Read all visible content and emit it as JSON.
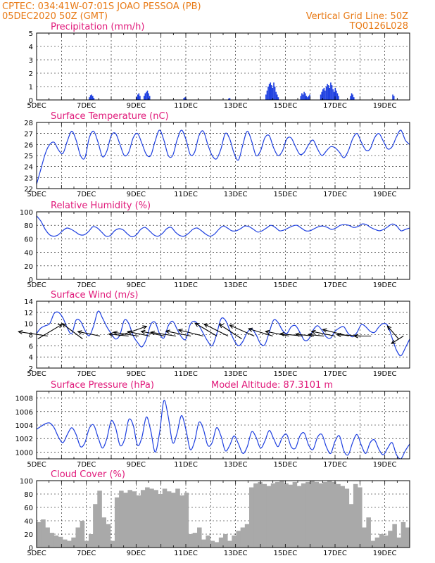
{
  "header": {
    "line1_left": "CPTEC:   034:41W-07:01S   JOAO PESSOA (PB)",
    "line2_left": "05DEC2020  50Z  (GMT)",
    "line1_right": "Vertical Grid Line: 50Z",
    "line2_right": "TQ0126L028",
    "extra_right": "Model Altitude: 87.3101 m"
  },
  "colors": {
    "header": "#e87a16",
    "title": "#e0197a",
    "line": "#1d3fe0",
    "bar": "#1d3fe0",
    "cloud": "#a9a9a9",
    "wind_arrow": "#000000"
  },
  "x_tick_labels": [
    "5DEC",
    "7DEC",
    "9DEC",
    "11DEC",
    "13DEC",
    "15DEC",
    "17DEC",
    "19DEC"
  ],
  "chart_data": [
    {
      "type": "bar",
      "title": "Precipitation (mm/h)",
      "ylim": [
        0,
        5
      ],
      "yticks": [
        0,
        1,
        2,
        3,
        4,
        5
      ],
      "bursts": [
        {
          "day": 7.1,
          "values": [
            0.2,
            0.35,
            0.4,
            0.3,
            0.15
          ]
        },
        {
          "day": 9.0,
          "values": [
            0.2,
            0.4,
            0.5,
            0.3
          ]
        },
        {
          "day": 9.3,
          "values": [
            0.3,
            0.5,
            0.6,
            0.7,
            0.5,
            0.3
          ]
        },
        {
          "day": 10.9,
          "values": [
            0.15,
            0.2,
            0.1
          ]
        },
        {
          "day": 12.7,
          "values": [
            0.1,
            0.15
          ]
        },
        {
          "day": 14.2,
          "values": [
            0.4,
            0.7,
            1.0,
            1.2,
            1.3,
            1.1,
            0.9,
            1.3,
            1.0,
            0.6,
            0.4,
            0.2
          ]
        },
        {
          "day": 15.6,
          "values": [
            0.3,
            0.5,
            0.4,
            0.6,
            0.5,
            0.3,
            0.2,
            0.3,
            0.4
          ]
        },
        {
          "day": 16.4,
          "values": [
            0.4,
            0.6,
            0.8,
            0.9,
            0.7,
            1.0,
            1.2,
            1.1,
            0.9,
            1.3,
            1.1,
            0.8,
            0.6,
            0.9,
            0.7,
            0.5,
            0.3
          ]
        },
        {
          "day": 17.6,
          "values": [
            0.3,
            0.5,
            0.4,
            0.2
          ]
        },
        {
          "day": 19.3,
          "values": [
            0.4,
            0.3
          ]
        }
      ]
    },
    {
      "type": "line",
      "title": "Surface Temperature (nC)",
      "ylim": [
        22,
        28
      ],
      "yticks": [
        22,
        23,
        24,
        25,
        26,
        27,
        28
      ],
      "series": [
        {
          "values": [
            22.4,
            23.8,
            25.2,
            26.0,
            26.2,
            25.5,
            25.2,
            26.3,
            27.2,
            26.4,
            25.0,
            24.8,
            26.6,
            27.2,
            26.2,
            24.9,
            25.4,
            26.8,
            27.0,
            26.0,
            25.0,
            25.3,
            26.6,
            27.0,
            26.1,
            25.1,
            25.0,
            26.3,
            27.3,
            26.4,
            25.0,
            25.0,
            26.4,
            27.3,
            26.5,
            25.1,
            25.3,
            26.8,
            27.2,
            26.0,
            25.0,
            24.7,
            25.6,
            27.0,
            26.5,
            25.2,
            24.6,
            26.0,
            27.2,
            26.3,
            25.0,
            25.4,
            26.6,
            26.8,
            25.7,
            25.0,
            25.4,
            26.5,
            26.6,
            25.8,
            25.1,
            25.3,
            26.0,
            26.4,
            25.6,
            25.0,
            25.4,
            25.8,
            25.7,
            25.3,
            24.8,
            25.4,
            26.5,
            27.0,
            26.2,
            25.5,
            25.6,
            26.6,
            27.0,
            26.3,
            25.6,
            25.8,
            26.7,
            27.3,
            26.4,
            26.0
          ]
        }
      ]
    },
    {
      "type": "line",
      "title": "Relative Humidity (%)",
      "ylim": [
        0,
        100
      ],
      "yticks": [
        0,
        20,
        40,
        60,
        80,
        100
      ],
      "series": [
        {
          "values": [
            94,
            86,
            74,
            66,
            64,
            66,
            72,
            76,
            74,
            70,
            66,
            66,
            71,
            78,
            76,
            70,
            64,
            65,
            72,
            75,
            73,
            67,
            63,
            66,
            74,
            77,
            72,
            66,
            64,
            68,
            75,
            77,
            70,
            65,
            64,
            68,
            74,
            76,
            72,
            67,
            64,
            67,
            74,
            79,
            76,
            72,
            72,
            75,
            79,
            78,
            74,
            70,
            72,
            76,
            80,
            77,
            72,
            73,
            76,
            79,
            80,
            76,
            72,
            72,
            75,
            78,
            79,
            77,
            74,
            76,
            80,
            81,
            80,
            77,
            78,
            82,
            81,
            77,
            74,
            72,
            74,
            78,
            82,
            79,
            72,
            74,
            76
          ]
        }
      ]
    },
    {
      "type": "line",
      "title": "Surface Wind (m/s)",
      "ylim": [
        2,
        14
      ],
      "yticks": [
        2,
        4,
        6,
        8,
        10,
        12,
        14
      ],
      "series": [
        {
          "values": [
            8.2,
            9.2,
            9.6,
            10.0,
            11.8,
            12.0,
            11.0,
            9.2,
            8.2,
            10.6,
            10.4,
            8.8,
            7.8,
            9.6,
            12.2,
            11.0,
            9.4,
            8.2,
            7.2,
            8.0,
            10.6,
            10.0,
            7.8,
            6.6,
            5.8,
            7.2,
            9.8,
            10.2,
            8.2,
            7.4,
            9.6,
            10.4,
            9.0,
            7.6,
            7.2,
            9.8,
            10.4,
            9.6,
            8.2,
            6.8,
            6.0,
            8.0,
            10.8,
            10.6,
            8.8,
            7.0,
            6.0,
            6.8,
            8.4,
            9.0,
            8.0,
            6.4,
            6.2,
            8.4,
            10.6,
            10.2,
            8.8,
            8.2,
            9.4,
            9.6,
            8.4,
            7.0,
            7.2,
            8.8,
            9.6,
            8.8,
            7.6,
            7.4,
            8.6,
            9.2,
            9.4,
            8.2,
            7.6,
            8.4,
            9.8,
            9.4,
            8.6,
            8.4,
            9.4,
            10.0,
            9.6,
            7.4,
            5.2,
            4.2,
            5.6,
            7.2
          ]
        }
      ],
      "arrows": [
        {
          "day": 5.05,
          "u": 1.0,
          "v": 0.6,
          "len": 1.0
        },
        {
          "day": 5.45,
          "u": -1.0,
          "v": 0.15,
          "len": 1.05
        },
        {
          "day": 6.85,
          "u": -0.8,
          "v": 0.6,
          "len": 0.9
        },
        {
          "day": 7.55,
          "u": -1.0,
          "v": 0.2,
          "len": 0.8
        },
        {
          "day": 8.3,
          "u": 1.0,
          "v": 0.35,
          "len": 1.05
        },
        {
          "day": 8.7,
          "u": -1.0,
          "v": 0.1,
          "len": 0.7
        },
        {
          "day": 9.1,
          "u": -1.0,
          "v": 0.15,
          "len": 0.9
        },
        {
          "day": 9.55,
          "u": -1.0,
          "v": 0.2,
          "len": 0.8
        },
        {
          "day": 10.15,
          "u": -1.0,
          "v": 0.2,
          "len": 0.85
        },
        {
          "day": 10.6,
          "u": -1.0,
          "v": 0.15,
          "len": 0.9
        },
        {
          "day": 11.2,
          "u": -1.0,
          "v": 0.2,
          "len": 0.9
        },
        {
          "day": 11.7,
          "u": -1.0,
          "v": 0.25,
          "len": 0.9
        },
        {
          "day": 12.25,
          "u": -0.85,
          "v": 0.5,
          "len": 0.9
        },
        {
          "day": 12.7,
          "u": -0.9,
          "v": 0.45,
          "len": 0.95
        },
        {
          "day": 13.25,
          "u": -0.85,
          "v": 0.55,
          "len": 0.95
        },
        {
          "day": 13.75,
          "u": -0.9,
          "v": 0.4,
          "len": 0.95
        },
        {
          "day": 14.5,
          "u": -1.0,
          "v": 0.3,
          "len": 0.9
        },
        {
          "day": 15.15,
          "u": -1.0,
          "v": 0.2,
          "len": 0.85
        },
        {
          "day": 15.7,
          "u": -1.0,
          "v": 0.1,
          "len": 0.8
        },
        {
          "day": 16.15,
          "u": -1.0,
          "v": 0.1,
          "len": 0.65
        },
        {
          "day": 16.55,
          "u": -1.0,
          "v": 0.1,
          "len": 0.55
        },
        {
          "day": 17.0,
          "u": -1.0,
          "v": 0.2,
          "len": 0.85
        },
        {
          "day": 17.55,
          "u": -1.0,
          "v": 0.25,
          "len": 0.95
        },
        {
          "day": 18.1,
          "u": -1.0,
          "v": 0.05,
          "len": 0.9
        },
        {
          "day": 18.45,
          "u": -1.0,
          "v": 0.0,
          "len": 0.6
        },
        {
          "day": 19.55,
          "u": -0.6,
          "v": 0.7,
          "len": 0.6
        },
        {
          "day": 19.75,
          "u": -0.8,
          "v": -0.5,
          "len": 0.5
        }
      ]
    },
    {
      "type": "line",
      "title": "Surface Pressure (hPa)",
      "ylim": [
        999,
        1009
      ],
      "yticks": [
        1000,
        1002,
        1004,
        1006,
        1008
      ],
      "series": [
        {
          "values": [
            1003.4,
            1003.8,
            1004.2,
            1004.3,
            1003.6,
            1002.2,
            1001.4,
            1002.6,
            1003.6,
            1002.6,
            1000.8,
            1001.4,
            1003.5,
            1004.0,
            1002.2,
            1000.6,
            1002.0,
            1004.6,
            1003.6,
            1001.0,
            1001.8,
            1004.8,
            1004.0,
            1001.0,
            1002.2,
            1005.2,
            1003.2,
            1000.0,
            1002.8,
            1007.6,
            1005.2,
            1001.4,
            1002.8,
            1005.4,
            1003.4,
            1000.4,
            1001.6,
            1004.4,
            1003.4,
            1001.0,
            1001.4,
            1003.6,
            1002.4,
            1000.2,
            1001.0,
            1002.4,
            1001.2,
            999.8,
            1000.8,
            1003.0,
            1002.2,
            1000.6,
            1001.6,
            1003.2,
            1002.0,
            1000.8,
            1002.2,
            1002.6,
            1000.8,
            1000.6,
            1002.4,
            1002.8,
            1001.0,
            1000.4,
            1002.2,
            1002.6,
            1000.8,
            999.8,
            1001.6,
            1002.4,
            1000.2,
            999.6,
            1001.4,
            1002.6,
            1001.0,
            999.8,
            1001.4,
            1001.8,
            1000.4,
            999.6,
            1000.6,
            1001.4,
            999.6,
            999.0,
            1000.2,
            1001.2
          ]
        }
      ]
    },
    {
      "type": "area",
      "title": "Cloud Cover (%)",
      "ylim": [
        0,
        100
      ],
      "yticks": [
        0,
        20,
        40,
        60,
        80,
        100
      ],
      "series": [
        {
          "values": [
            38,
            42,
            30,
            22,
            18,
            16,
            12,
            10,
            15,
            30,
            40,
            10,
            20,
            65,
            85,
            45,
            35,
            10,
            75,
            85,
            82,
            86,
            84,
            78,
            86,
            90,
            88,
            86,
            80,
            88,
            84,
            82,
            88,
            78,
            82,
            20,
            22,
            30,
            12,
            18,
            10,
            8,
            15,
            20,
            10,
            18,
            25,
            30,
            35,
            90,
            96,
            98,
            95,
            92,
            96,
            98,
            100,
            96,
            94,
            98,
            92,
            96,
            98,
            100,
            98,
            96,
            98,
            100,
            98,
            95,
            92,
            88,
            65,
            95,
            90,
            30,
            45,
            10,
            15,
            20,
            18,
            25,
            35,
            15,
            38,
            30
          ]
        }
      ]
    }
  ]
}
